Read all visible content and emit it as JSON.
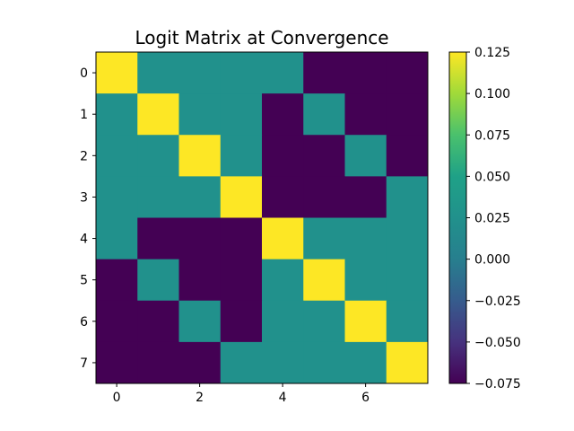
{
  "chart_data": {
    "type": "heatmap",
    "title": "Logit Matrix at Convergence",
    "xlabel": "",
    "ylabel": "",
    "rows": [
      "0",
      "1",
      "2",
      "3",
      "4",
      "5",
      "6",
      "7"
    ],
    "cols": [
      "0",
      "1",
      "2",
      "3",
      "4",
      "5",
      "6",
      "7"
    ],
    "x_tick_values": [
      0,
      2,
      4,
      6
    ],
    "x_tick_labels": [
      "0",
      "2",
      "4",
      "6"
    ],
    "y_tick_labels": [
      "0",
      "1",
      "2",
      "3",
      "4",
      "5",
      "6",
      "7"
    ],
    "values": [
      [
        0.125,
        0.025,
        0.025,
        0.025,
        0.025,
        -0.075,
        -0.075,
        -0.075
      ],
      [
        0.025,
        0.125,
        0.025,
        0.025,
        -0.075,
        0.025,
        -0.075,
        -0.075
      ],
      [
        0.025,
        0.025,
        0.125,
        0.025,
        -0.075,
        -0.075,
        0.025,
        -0.075
      ],
      [
        0.025,
        0.025,
        0.025,
        0.125,
        -0.075,
        -0.075,
        -0.075,
        0.025
      ],
      [
        0.025,
        -0.075,
        -0.075,
        -0.075,
        0.125,
        0.025,
        0.025,
        0.025
      ],
      [
        -0.075,
        0.025,
        -0.075,
        -0.075,
        0.025,
        0.125,
        0.025,
        0.025
      ],
      [
        -0.075,
        -0.075,
        0.025,
        -0.075,
        0.025,
        0.025,
        0.125,
        0.025
      ],
      [
        -0.075,
        -0.075,
        -0.075,
        0.025,
        0.025,
        0.025,
        0.025,
        0.125
      ]
    ],
    "colormap": "viridis",
    "vmin": -0.075,
    "vmax": 0.125,
    "colorbar_ticks": [
      0.125,
      0.1,
      0.075,
      0.05,
      0.025,
      0.0,
      -0.025,
      -0.05,
      -0.075
    ],
    "colorbar_tick_labels": [
      "0.125",
      "0.100",
      "0.075",
      "0.050",
      "0.025",
      "0.000",
      "−0.025",
      "−0.050",
      "−0.075"
    ],
    "colorbar_location": "right"
  }
}
